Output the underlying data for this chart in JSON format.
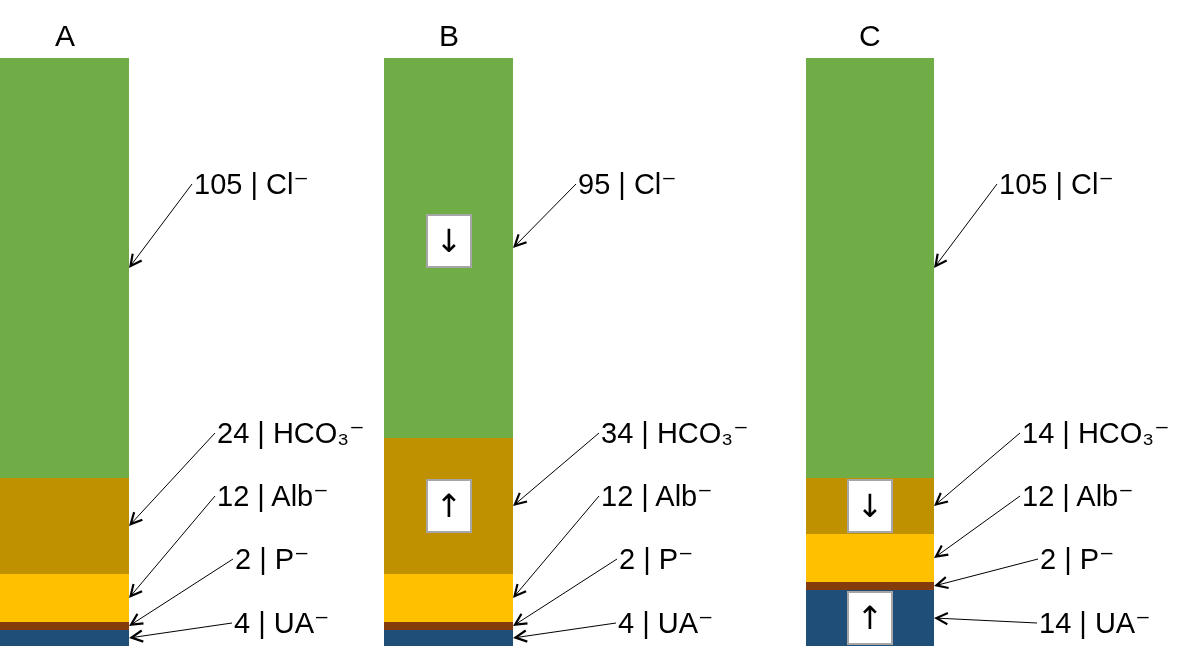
{
  "chart_data": [
    {
      "type": "bar",
      "title": "A",
      "stacked": true,
      "categories": [
        null
      ],
      "series": [
        {
          "color": "#1f4e79",
          "values": [
            4
          ],
          "value_labels": [
            "4 | UA⁻"
          ]
        },
        {
          "color": "#843c0c",
          "values": [
            2
          ],
          "value_labels": [
            "2 | P⁻"
          ]
        },
        {
          "color": "#ffc000",
          "values": [
            12
          ],
          "value_labels": [
            "12 | Alb⁻"
          ]
        },
        {
          "color": "#bf9000",
          "values": [
            24
          ],
          "value_labels": [
            "24 | HCO₃⁻"
          ]
        },
        {
          "color": "#70ad47",
          "values": [
            105
          ],
          "value_labels": [
            "105 | Cl⁻"
          ]
        }
      ]
    },
    {
      "type": "bar",
      "title": "B",
      "stacked": true,
      "categories": [
        null
      ],
      "series": [
        {
          "color": "#1f4e79",
          "values": [
            4
          ],
          "value_labels": [
            "4 | UA⁻"
          ]
        },
        {
          "color": "#843c0c",
          "values": [
            2
          ],
          "value_labels": [
            "2 | P⁻"
          ]
        },
        {
          "color": "#ffc000",
          "values": [
            12
          ],
          "value_labels": [
            "12 | Alb⁻"
          ]
        },
        {
          "color": "#bf9000",
          "values": [
            34
          ],
          "value_labels": [
            "34 | HCO₃⁻"
          ]
        },
        {
          "color": "#70ad47",
          "values": [
            95
          ],
          "value_labels": [
            "95 | Cl⁻"
          ]
        }
      ],
      "annotations": [
        "↓",
        "↑"
      ]
    },
    {
      "type": "bar",
      "title": "C",
      "stacked": true,
      "categories": [
        null
      ],
      "series": [
        {
          "color": "#1f4e79",
          "values": [
            14
          ],
          "value_labels": [
            "14 | UA⁻"
          ]
        },
        {
          "color": "#843c0c",
          "values": [
            2
          ],
          "value_labels": [
            "2 | P⁻"
          ]
        },
        {
          "color": "#ffc000",
          "values": [
            12
          ],
          "value_labels": [
            "12 | Alb⁻"
          ]
        },
        {
          "color": "#bf9000",
          "values": [
            14
          ],
          "value_labels": [
            "14 | HCO₃⁻"
          ]
        },
        {
          "color": "#70ad47",
          "values": [
            105
          ],
          "value_labels": [
            "105 | Cl⁻"
          ]
        }
      ],
      "annotations": [
        "↓",
        "↑"
      ]
    }
  ]
}
